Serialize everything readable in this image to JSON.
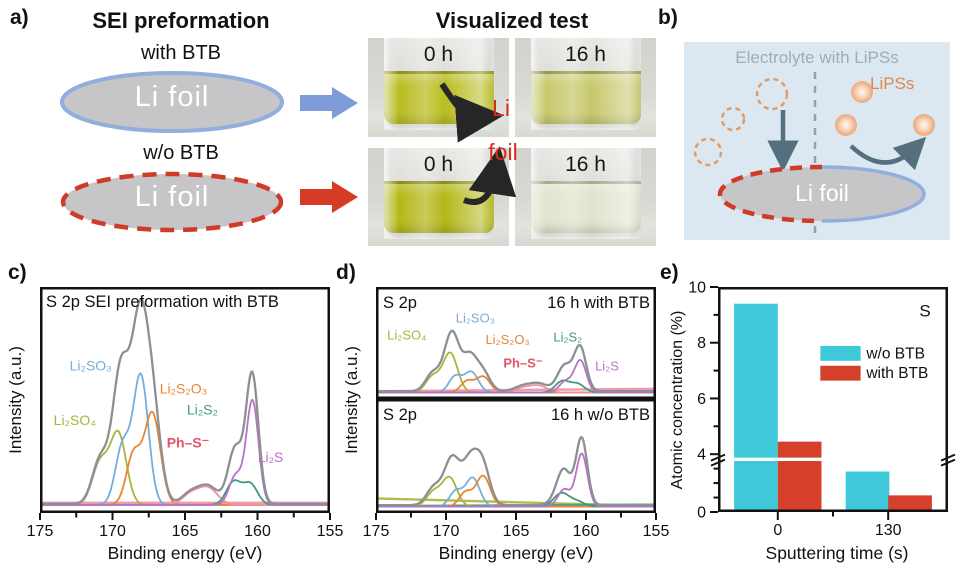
{
  "colors": {
    "envelope": "#8c9094",
    "li2so3": "#74aede",
    "li2so4": "#a9b43c",
    "li2s2o3": "#e8872f",
    "phs": "#ef8fa0",
    "phs_label": "#e0556a",
    "li2s2": "#42997e",
    "li2s": "#b873c8",
    "cyan": "#3fc8da",
    "red": "#d4402a",
    "blue_arrow": "#7e9cd8",
    "red_arrow": "#d63c25",
    "foil_fill": "#c6c5c7",
    "blue_ring": "#92aedd",
    "red_dash": "#d03a28",
    "b_bg": "#dce8f1",
    "b_title": "#9fadb8",
    "lipss": "#e0854e",
    "slate": "#54707f",
    "anno_red": "#d92b1e"
  },
  "panel_a": {
    "label": "a)",
    "title": "SEI preformation",
    "with_btb": "with BTB",
    "wo_btb": "w/o BTB",
    "li_foil_top": "Li foil",
    "li_foil_bottom": "Li foil"
  },
  "visual_test": {
    "title": "Visualized test",
    "annotation_line1": "Li",
    "annotation_line2": "foil",
    "photos": [
      {
        "time": "0 h",
        "liquid_color": "#b9bc20"
      },
      {
        "time": "16 h",
        "liquid_color": "#c6c86c"
      },
      {
        "time": "0 h",
        "liquid_color": "#b4b718"
      },
      {
        "time": "16 h",
        "liquid_color": "#e0e3cd"
      }
    ]
  },
  "panel_b": {
    "label": "b)",
    "title": "Electrolyte with LiPSs",
    "lipss_label": "LiPSs",
    "li_foil": "Li foil"
  },
  "panel_c": {
    "label": "c)",
    "ylabel": "Intensity (a.u.)"
  },
  "panel_d": {
    "label": "d)",
    "ylabel": "Intensity (a.u.)"
  },
  "panel_e": {
    "label": "e)",
    "ylabel": "Atomic concentration (%)"
  },
  "chart_data": [
    {
      "id": "c",
      "type": "line",
      "subtype": "xps-spectrum",
      "title_inside": "S 2p SEI preformation with BTB",
      "xlabel": "Binding energy (eV)",
      "ylabel": "Intensity (a.u.)",
      "x_range": [
        175,
        155
      ],
      "x_ticks": [
        175,
        170,
        165,
        160,
        155
      ],
      "x_minor_ticks": [
        172.5,
        167.5,
        162.5,
        157.5
      ],
      "envelope_mult": 1.05,
      "envelope_base": 0.02,
      "baselines": [
        {
          "color": "phs",
          "from": 0.025,
          "to": 0.025
        }
      ],
      "species": [
        {
          "name": "Li₂SO₄",
          "color": "li2so4",
          "peaks": [
            [
              170.85,
              0.2,
              0.55
            ],
            [
              169.6,
              0.34,
              0.55
            ]
          ]
        },
        {
          "name": "Li₂SO₃",
          "color": "li2so3",
          "peaks": [
            [
              169.3,
              0.28,
              0.5
            ],
            [
              168.05,
              0.62,
              0.52
            ]
          ]
        },
        {
          "name": "Li₂S₂O₃",
          "color": "li2s2o3",
          "peaks": [
            [
              168.55,
              0.24,
              0.5
            ],
            [
              167.25,
              0.44,
              0.55
            ]
          ]
        },
        {
          "name": "Ph–S⁻",
          "color": "phs",
          "peaks": [
            [
              164.6,
              0.05,
              0.6
            ],
            [
              163.4,
              0.08,
              0.65
            ]
          ]
        },
        {
          "name": "Li₂S₂",
          "color": "li2s2",
          "peaks": [
            [
              161.65,
              0.11,
              0.5
            ],
            [
              160.5,
              0.1,
              0.5
            ]
          ]
        },
        {
          "name": "Li₂S",
          "color": "li2s",
          "peaks": [
            [
              161.5,
              0.14,
              0.45
            ],
            [
              160.35,
              0.5,
              0.42
            ]
          ]
        }
      ],
      "labels": [
        {
          "text": "Li₂SO₃",
          "color": "li2so3",
          "ev": 171.5,
          "vy": 0.66
        },
        {
          "text": "Li₂SO₄",
          "color": "li2so4",
          "ev": 172.6,
          "vy": 0.4
        },
        {
          "text": "Li₂S₂O₃",
          "color": "li2s2o3",
          "ev": 165.1,
          "vy": 0.55
        },
        {
          "text": "Ph–S⁻",
          "color": "phs_label",
          "ev": 164.8,
          "vy": 0.29,
          "bold": true
        },
        {
          "text": "Li₂S₂",
          "color": "li2s2",
          "ev": 163.8,
          "vy": 0.45
        },
        {
          "text": "Li₂S",
          "color": "li2s",
          "ev": 159.1,
          "vy": 0.22
        }
      ]
    },
    {
      "id": "d-top",
      "type": "line",
      "subtype": "xps-spectrum",
      "corner_left": "S 2p",
      "corner_right": "16 h with BTB",
      "x_range": [
        175,
        155
      ],
      "x_ticks": [
        175,
        170,
        165,
        160,
        155
      ],
      "x_minor_ticks": [
        172.5,
        167.5,
        162.5,
        157.5
      ],
      "envelope_mult": 1.12,
      "envelope_base": 0.03,
      "baselines": [
        {
          "color": "phs",
          "from": 0.03,
          "to": 0.055
        }
      ],
      "species": [
        {
          "name": "Li₂SO₄",
          "color": "li2so4",
          "peaks": [
            [
              170.95,
              0.17,
              0.5
            ],
            [
              169.7,
              0.42,
              0.52
            ]
          ]
        },
        {
          "name": "Li₂SO₃",
          "color": "li2so3",
          "peaks": [
            [
              169.35,
              0.17,
              0.45
            ],
            [
              168.2,
              0.22,
              0.5
            ]
          ]
        },
        {
          "name": "Li₂S₂O₃",
          "color": "li2s2o3",
          "peaks": [
            [
              168.5,
              0.12,
              0.45
            ],
            [
              167.35,
              0.17,
              0.5
            ]
          ]
        },
        {
          "name": "Ph–S⁻",
          "color": "phs",
          "peaks": [
            [
              164.5,
              0.05,
              0.6
            ],
            [
              163.35,
              0.07,
              0.6
            ]
          ]
        },
        {
          "name": "Li₂S₂",
          "color": "li2s2",
          "peaks": [
            [
              161.7,
              0.12,
              0.5
            ],
            [
              160.6,
              0.09,
              0.5
            ]
          ]
        },
        {
          "name": "Li₂S",
          "color": "li2s",
          "peaks": [
            [
              161.45,
              0.12,
              0.45
            ],
            [
              160.4,
              0.34,
              0.42
            ]
          ]
        }
      ],
      "labels": [
        {
          "text": "Li₂SO₄",
          "color": "li2so4",
          "ev": 172.8,
          "vy": 0.58
        },
        {
          "text": "Li₂SO₃",
          "color": "li2so3",
          "ev": 167.9,
          "vy": 0.76
        },
        {
          "text": "Li₂S₂O₃",
          "color": "li2s2o3",
          "ev": 165.6,
          "vy": 0.53
        },
        {
          "text": "Ph–S⁻",
          "color": "phs_label",
          "ev": 164.5,
          "vy": 0.28,
          "bold": true
        },
        {
          "text": "Li₂S₂",
          "color": "li2s2",
          "ev": 161.3,
          "vy": 0.56
        },
        {
          "text": "Li₂S",
          "color": "li2s",
          "ev": 158.5,
          "vy": 0.25
        }
      ]
    },
    {
      "id": "d-bottom",
      "type": "line",
      "subtype": "xps-spectrum",
      "corner_left": "S 2p",
      "corner_right": "16 h w/o BTB",
      "xlabel": "Binding energy (eV)",
      "x_range": [
        175,
        155
      ],
      "x_ticks": [
        175,
        170,
        165,
        160,
        155
      ],
      "x_minor_ticks": [
        172.5,
        167.5,
        162.5,
        157.5
      ],
      "envelope_mult": 1.18,
      "envelope_base": 0.03,
      "baselines": [
        {
          "color": "li2so4",
          "from": 0.1,
          "to": 0.02
        },
        {
          "color": "li2s2",
          "from": 0.02,
          "to": 0.035
        }
      ],
      "species": [
        {
          "name": "Li₂SO₄",
          "color": "li2so4",
          "peaks": [
            [
              170.9,
              0.15,
              0.5
            ],
            [
              169.75,
              0.3,
              0.52
            ]
          ]
        },
        {
          "name": "Li₂SO₃",
          "color": "li2so3",
          "peaks": [
            [
              169.3,
              0.16,
              0.45
            ],
            [
              168.1,
              0.3,
              0.5
            ]
          ]
        },
        {
          "name": "Li₂S₂O₃",
          "color": "li2s2o3",
          "peaks": [
            [
              168.6,
              0.15,
              0.45
            ],
            [
              167.35,
              0.32,
              0.5
            ]
          ]
        },
        {
          "name": "Li₂S₂",
          "color": "li2s2",
          "peaks": [
            [
              161.75,
              0.14,
              0.55
            ],
            [
              160.6,
              0.05,
              0.5
            ]
          ]
        },
        {
          "name": "Li₂S",
          "color": "li2s",
          "peaks": [
            [
              161.55,
              0.18,
              0.45
            ],
            [
              160.3,
              0.55,
              0.4
            ]
          ]
        }
      ],
      "labels": []
    },
    {
      "id": "e",
      "type": "bar",
      "ylabel": "Atomic concentration (%)",
      "xlabel": "Sputtering time (s)",
      "corner_label": "S",
      "ylim": [
        0,
        10
      ],
      "y_ticks": [
        {
          "v": 0,
          "label": "0"
        },
        {
          "v": 4,
          "label": "4"
        },
        {
          "v": 6,
          "label": "6"
        },
        {
          "v": 8,
          "label": "8"
        },
        {
          "v": 10,
          "label": "10"
        }
      ],
      "y_minor_ticks": [
        1,
        2,
        3,
        5,
        7,
        9
      ],
      "axis_break": {
        "at_value": 3.9,
        "value_fraction_of_height": 0.257
      },
      "categories": [
        "0",
        "130"
      ],
      "series": [
        {
          "name": "w/o BTB",
          "color": "cyan",
          "values": [
            9.4,
            2.8
          ]
        },
        {
          "name": "with BTB",
          "color": "red",
          "values": [
            4.45,
            1.15
          ]
        }
      ],
      "legend": [
        {
          "label": "w/o BTB",
          "color": "cyan"
        },
        {
          "label": "with BTB",
          "color": "red"
        }
      ]
    }
  ]
}
